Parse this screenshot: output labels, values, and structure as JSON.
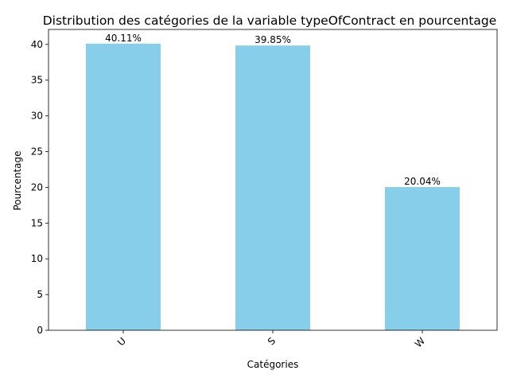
{
  "chart_data": {
    "type": "bar",
    "title": "Distribution des catégories de la variable typeOfContract en pourcentage",
    "xlabel": "Catégories",
    "ylabel": "Pourcentage",
    "categories": [
      "U",
      "S",
      "W"
    ],
    "values": [
      40.11,
      39.85,
      20.04
    ],
    "data_labels": [
      "40.11%",
      "39.85%",
      "20.04%"
    ],
    "yticks": [
      0,
      5,
      10,
      15,
      20,
      25,
      30,
      35,
      40
    ],
    "ylim": [
      0,
      42.1
    ],
    "bar_color": "#87CEEB",
    "grid": false,
    "legend": "none",
    "xtick_rotation": 45
  }
}
